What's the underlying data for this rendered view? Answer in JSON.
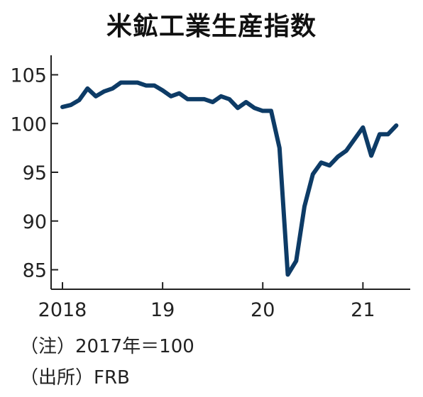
{
  "chart_data": {
    "type": "line",
    "title": "米鉱工業生産指数",
    "xlabel": "",
    "ylabel": "",
    "y_ticks": [
      "105",
      "100",
      "95",
      "90",
      "85"
    ],
    "x_ticks": [
      "2018",
      "19",
      "20",
      "21"
    ],
    "ylim": [
      83,
      107
    ],
    "xlim": [
      "2018-01",
      "2021-05"
    ],
    "grid": false,
    "line_color": "#0d3b66",
    "x": [
      "2018-01",
      "2018-02",
      "2018-03",
      "2018-04",
      "2018-05",
      "2018-06",
      "2018-07",
      "2018-08",
      "2018-09",
      "2018-10",
      "2018-11",
      "2018-12",
      "2019-01",
      "2019-02",
      "2019-03",
      "2019-04",
      "2019-05",
      "2019-06",
      "2019-07",
      "2019-08",
      "2019-09",
      "2019-10",
      "2019-11",
      "2019-12",
      "2020-01",
      "2020-02",
      "2020-03",
      "2020-04",
      "2020-05",
      "2020-06",
      "2020-07",
      "2020-08",
      "2020-09",
      "2020-10",
      "2020-11",
      "2020-12",
      "2021-01",
      "2021-02",
      "2021-03",
      "2021-04",
      "2021-05"
    ],
    "values": [
      101.7,
      101.9,
      102.4,
      103.6,
      102.8,
      103.3,
      103.6,
      104.2,
      104.2,
      104.2,
      103.9,
      103.9,
      103.4,
      102.8,
      103.1,
      102.5,
      102.5,
      102.5,
      102.2,
      102.8,
      102.5,
      101.6,
      102.2,
      101.6,
      101.3,
      101.3,
      97.5,
      84.5,
      85.9,
      91.5,
      94.8,
      96.0,
      95.7,
      96.6,
      97.2,
      98.4,
      99.6,
      96.7,
      98.9,
      98.9,
      99.8
    ]
  },
  "notes": {
    "base": "（注）2017年＝100",
    "source": "（出所）FRB"
  }
}
